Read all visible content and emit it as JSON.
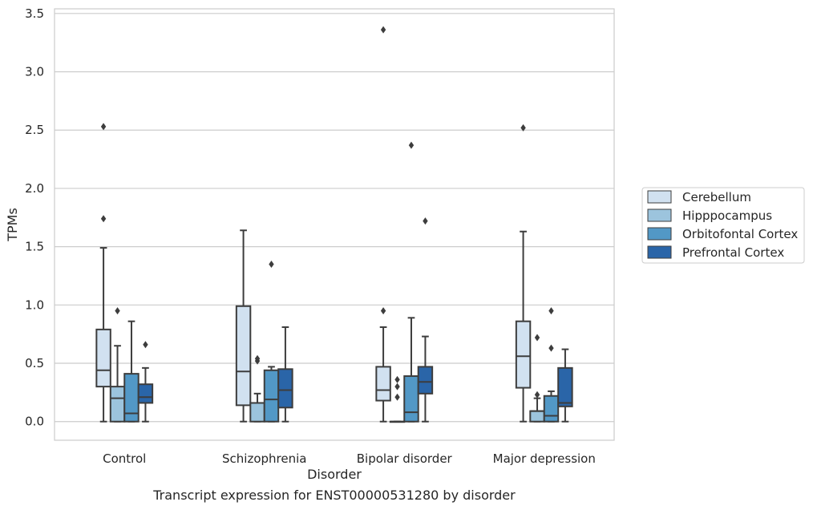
{
  "caption": "Transcript expression for ENST00000531280 by disorder",
  "chart_data": {
    "type": "box",
    "xlabel": "Disorder",
    "ylabel": "TPMs",
    "ylim": [
      -0.16,
      3.54
    ],
    "yticks": [
      "0.0",
      "0.5",
      "1.0",
      "1.5",
      "2.0",
      "2.5",
      "3.0",
      "3.5"
    ],
    "grid": "horizontal",
    "legend_position": "right",
    "categories": [
      "Control",
      "Schizophrenia",
      "Bipolar disorder",
      "Major depression"
    ],
    "series": [
      {
        "name": "Cerebellum",
        "color": "#d1e1f0",
        "boxes": [
          {
            "whisker_low": 0.0,
            "q1": 0.3,
            "median": 0.44,
            "q3": 0.79,
            "whisker_high": 1.49,
            "outliers": [
              1.74,
              2.53
            ]
          },
          {
            "whisker_low": 0.0,
            "q1": 0.14,
            "median": 0.43,
            "q3": 0.99,
            "whisker_high": 1.64,
            "outliers": []
          },
          {
            "whisker_low": 0.0,
            "q1": 0.18,
            "median": 0.27,
            "q3": 0.47,
            "whisker_high": 0.81,
            "outliers": [
              0.95,
              3.36
            ]
          },
          {
            "whisker_low": 0.0,
            "q1": 0.29,
            "median": 0.56,
            "q3": 0.86,
            "whisker_high": 1.63,
            "outliers": [
              2.52
            ]
          }
        ]
      },
      {
        "name": "Hipppocampus",
        "color": "#9cc4dd",
        "boxes": [
          {
            "whisker_low": 0.0,
            "q1": 0.0,
            "median": 0.2,
            "q3": 0.3,
            "whisker_high": 0.65,
            "outliers": [
              0.95
            ]
          },
          {
            "whisker_low": 0.0,
            "q1": 0.0,
            "median": 0.16,
            "q3": 0.16,
            "whisker_high": 0.24,
            "outliers": [
              0.52,
              0.54
            ]
          },
          {
            "whisker_low": 0.0,
            "q1": 0.0,
            "median": 0.0,
            "q3": 0.0,
            "whisker_high": 0.0,
            "outliers": [
              0.21,
              0.3,
              0.36
            ]
          },
          {
            "whisker_low": 0.0,
            "q1": 0.0,
            "median": 0.09,
            "q3": 0.09,
            "whisker_high": 0.2,
            "outliers": [
              0.23,
              0.72
            ]
          }
        ]
      },
      {
        "name": "Orbitofontal Cortex",
        "color": "#5298c6",
        "boxes": [
          {
            "whisker_low": 0.0,
            "q1": 0.0,
            "median": 0.07,
            "q3": 0.41,
            "whisker_high": 0.86,
            "outliers": []
          },
          {
            "whisker_low": 0.0,
            "q1": 0.0,
            "median": 0.19,
            "q3": 0.44,
            "whisker_high": 0.47,
            "outliers": [
              1.35
            ]
          },
          {
            "whisker_low": 0.0,
            "q1": 0.0,
            "median": 0.08,
            "q3": 0.39,
            "whisker_high": 0.89,
            "outliers": [
              2.37
            ]
          },
          {
            "whisker_low": 0.0,
            "q1": 0.0,
            "median": 0.05,
            "q3": 0.22,
            "whisker_high": 0.26,
            "outliers": [
              0.63,
              0.95
            ]
          }
        ]
      },
      {
        "name": "Prefrontal Cortex",
        "color": "#2a65a8",
        "boxes": [
          {
            "whisker_low": 0.0,
            "q1": 0.16,
            "median": 0.21,
            "q3": 0.32,
            "whisker_high": 0.46,
            "outliers": [
              0.66
            ]
          },
          {
            "whisker_low": 0.0,
            "q1": 0.12,
            "median": 0.27,
            "q3": 0.45,
            "whisker_high": 0.81,
            "outliers": []
          },
          {
            "whisker_low": 0.0,
            "q1": 0.24,
            "median": 0.34,
            "q3": 0.47,
            "whisker_high": 0.73,
            "outliers": [
              1.72
            ]
          },
          {
            "whisker_low": 0.0,
            "q1": 0.13,
            "median": 0.16,
            "q3": 0.46,
            "whisker_high": 0.62,
            "outliers": []
          }
        ]
      }
    ]
  }
}
